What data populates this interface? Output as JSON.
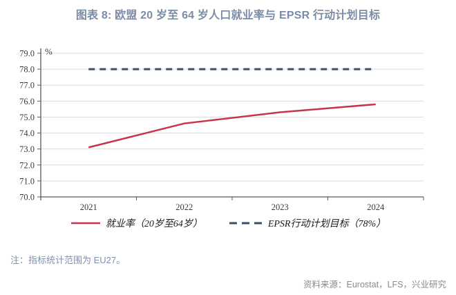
{
  "title": "图表 8: 欧盟 20 岁至 64 岁人口就业率与 EPSR 行动计划目标",
  "chart_data": {
    "type": "line",
    "categories": [
      "2021",
      "2022",
      "2023",
      "2024"
    ],
    "series": [
      {
        "name": "就业率（20岁至64岁）",
        "values": [
          73.1,
          74.6,
          75.3,
          75.8
        ],
        "color": "#c8334b",
        "style": "solid"
      },
      {
        "name": "EPSR行动计划目标（78%）",
        "values": [
          78.0,
          78.0,
          78.0,
          78.0
        ],
        "color": "#3b4e68",
        "style": "dashed"
      }
    ],
    "ylabel": "%",
    "ylim": [
      70.0,
      79.0
    ],
    "ytick_step": 1.0,
    "grid": true,
    "legend_position": "bottom"
  },
  "note": "注：指标统计范围为 EU27。",
  "source": "资料来源：Eurostat，LFS，兴业研究",
  "colors": {
    "title": "#7b8ca6",
    "note": "#7e90ac",
    "source": "#8a8a8a",
    "gridline": "#dcdcdc",
    "axis": "#595959"
  }
}
